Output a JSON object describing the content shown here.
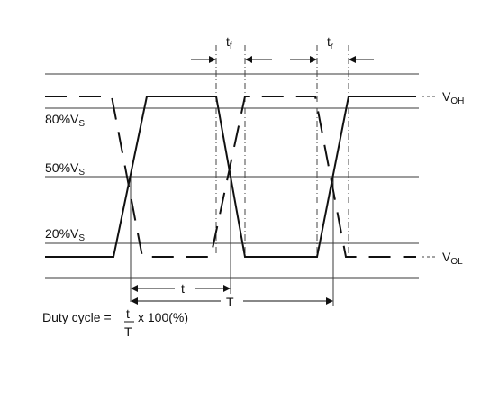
{
  "labels": {
    "pct80": "80%V",
    "pct50": "50%V",
    "pct20": "20%V",
    "vs_sub": "S",
    "voh_main": "V",
    "voh_sub": "OH",
    "vol_main": "V",
    "vol_sub": "OL",
    "tf_main": "t",
    "tf_sub": "f",
    "tr_main": "t",
    "tr_sub": "r",
    "t_small": "t",
    "T_period": "T"
  },
  "formula": {
    "prefix": "Duty cycle =",
    "numerator": "t",
    "denominator": "T",
    "suffix": "x 100(%)"
  }
}
